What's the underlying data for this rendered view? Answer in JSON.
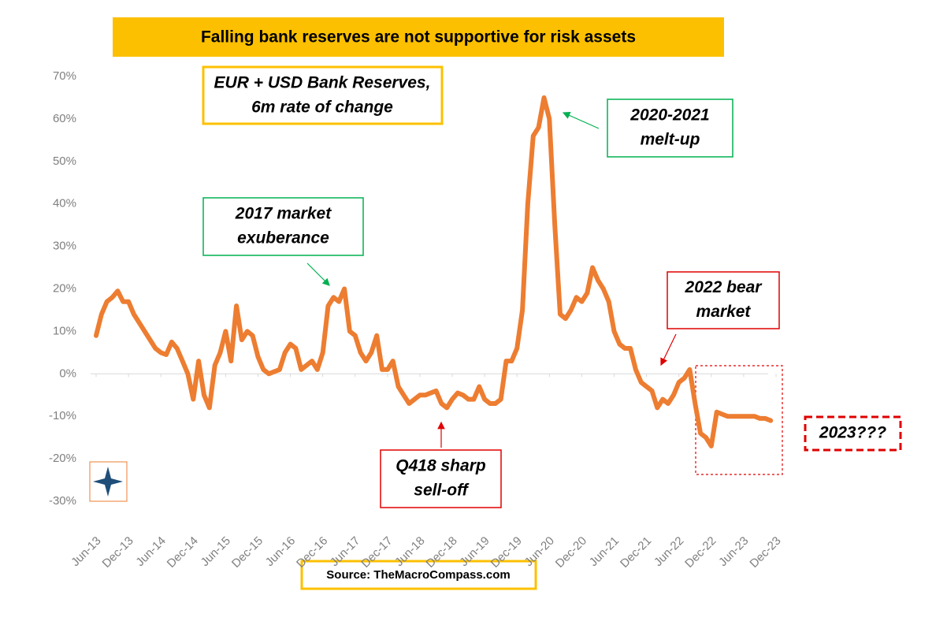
{
  "chart_data": {
    "type": "line",
    "title": "Falling bank reserves are not supportive for risk assets",
    "subtitle": [
      "EUR + USD Bank Reserves,",
      "6m rate of change"
    ],
    "source": "Source: TheMacroCompass.com",
    "annotations": [
      {
        "text": [
          "2020-2021",
          "melt-up"
        ],
        "color": "#00b050"
      },
      {
        "text": [
          "2017 market",
          "exuberance"
        ],
        "color": "#00b050"
      },
      {
        "text": [
          "2022 bear",
          "market"
        ],
        "color": "#e00000"
      },
      {
        "text": [
          "Q418 sharp",
          "sell-off"
        ],
        "color": "#e00000"
      },
      {
        "text": [
          "2023???"
        ],
        "color": "#e00000"
      }
    ],
    "categories": [
      "Jun-13",
      null,
      null,
      null,
      null,
      null,
      "Dec-13",
      null,
      null,
      null,
      null,
      null,
      "Jun-14",
      null,
      null,
      null,
      null,
      null,
      "Dec-14",
      null,
      null,
      null,
      null,
      null,
      "Jun-15",
      null,
      null,
      null,
      null,
      null,
      "Dec-15",
      null,
      null,
      null,
      null,
      null,
      "Jun-16",
      null,
      null,
      null,
      null,
      null,
      "Dec-16",
      null,
      null,
      null,
      null,
      null,
      "Jun-17",
      null,
      null,
      null,
      null,
      null,
      "Dec-17",
      null,
      null,
      null,
      null,
      null,
      "Jun-18",
      null,
      null,
      null,
      null,
      null,
      "Dec-18",
      null,
      null,
      null,
      null,
      null,
      "Jun-19",
      null,
      null,
      null,
      null,
      null,
      "Dec-19",
      null,
      null,
      null,
      null,
      null,
      "Jun-20",
      null,
      null,
      null,
      null,
      null,
      "Dec-20",
      null,
      null,
      null,
      null,
      null,
      "Jun-21",
      null,
      null,
      null,
      null,
      null,
      "Dec-21",
      null,
      null,
      null,
      null,
      null,
      "Jun-22",
      null,
      null,
      null,
      null,
      null,
      "Dec-22",
      null,
      null,
      null,
      null,
      null,
      "Jun-23",
      null,
      null,
      null,
      null,
      null,
      "Dec-23"
    ],
    "series": [
      {
        "color": "#ed7d31",
        "values": [
          9,
          14,
          17,
          18,
          19.5,
          17,
          17,
          14,
          12,
          10,
          8,
          6,
          5,
          4.5,
          7.5,
          6,
          3,
          0,
          -6,
          3,
          -5,
          -8,
          2,
          5,
          10,
          3,
          16,
          8,
          10,
          9,
          4,
          1,
          0,
          0.5,
          1,
          5,
          7,
          6,
          1,
          2,
          3,
          1,
          5,
          16,
          18,
          17,
          20,
          10,
          9,
          5,
          3,
          5,
          9,
          1,
          1,
          3,
          -3,
          -5,
          -7,
          -6,
          -5,
          -5,
          -4.5,
          -4,
          -7,
          -8,
          -6,
          -4.5,
          -5,
          -6,
          -6,
          -3,
          -6,
          -7,
          -7,
          -6,
          3,
          3,
          6,
          15,
          40,
          56,
          58,
          65,
          60,
          35,
          14,
          13,
          15,
          18,
          17,
          19,
          25,
          22,
          20,
          17,
          10,
          7,
          6,
          6,
          1,
          -2,
          -3,
          -4,
          -8,
          -6,
          -7,
          -5,
          -2,
          -1,
          1,
          -7,
          -14,
          -15,
          -17,
          -9,
          -9.5,
          -10,
          -10,
          -10,
          -10,
          -10,
          -10,
          -10.5,
          -10.5,
          -11,
          null
        ]
      }
    ],
    "ylim": [
      -30,
      70
    ],
    "yticks": [
      {
        "value": -30,
        "label": "-30%"
      },
      {
        "value": -20,
        "label": "-20%"
      },
      {
        "value": -10,
        "label": "-10%"
      },
      {
        "value": 0,
        "label": "0%"
      },
      {
        "value": 10,
        "label": "10%"
      },
      {
        "value": 20,
        "label": "20%"
      },
      {
        "value": 30,
        "label": "30%"
      },
      {
        "value": 40,
        "label": "40%"
      },
      {
        "value": 50,
        "label": "50%"
      },
      {
        "value": 60,
        "label": "60%"
      },
      {
        "value": 70,
        "label": "70%"
      }
    ]
  }
}
